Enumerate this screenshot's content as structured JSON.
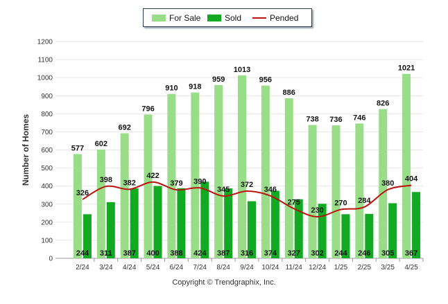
{
  "chart_data": {
    "type": "bar",
    "categories": [
      "2/24",
      "3/24",
      "4/24",
      "5/24",
      "6/24",
      "7/24",
      "8/24",
      "9/24",
      "10/24",
      "11/24",
      "12/24",
      "1/25",
      "2/25",
      "3/25",
      "4/25"
    ],
    "series": [
      {
        "name": "For Sale",
        "type": "bar",
        "color": "#99dd88",
        "values": [
          577,
          602,
          692,
          796,
          910,
          918,
          959,
          1013,
          956,
          886,
          738,
          736,
          746,
          826,
          1021
        ]
      },
      {
        "name": "Sold",
        "type": "bar",
        "color": "#11aa22",
        "values": [
          244,
          311,
          387,
          400,
          388,
          424,
          387,
          316,
          374,
          327,
          302,
          244,
          246,
          305,
          367
        ]
      },
      {
        "name": "Pended",
        "type": "line",
        "color": "#bb1111",
        "values": [
          326,
          398,
          382,
          422,
          379,
          390,
          345,
          372,
          346,
          275,
          230,
          270,
          284,
          380,
          404
        ]
      }
    ],
    "ylabel": "Number of Homes",
    "xlabel": "",
    "ylim": [
      0,
      1200
    ],
    "yticks": [
      0,
      100,
      200,
      300,
      400,
      500,
      600,
      700,
      800,
      900,
      1000,
      1100,
      1200
    ],
    "grid": true,
    "legend_position": "top-center"
  },
  "legend": {
    "for_sale": "For Sale",
    "sold": "Sold",
    "pended": "Pended"
  },
  "footer": {
    "copyright": "Copyright © Trendgraphix, Inc."
  }
}
